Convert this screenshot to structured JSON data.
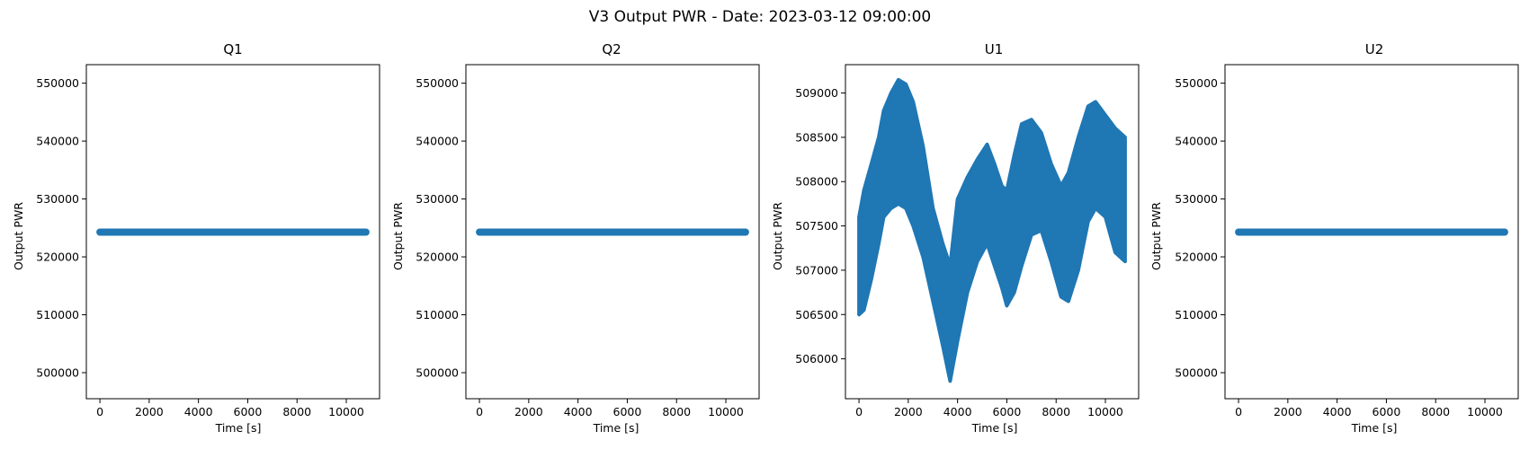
{
  "figure": {
    "suptitle": "V3 Output PWR - Date: 2023-03-12 09:00:00"
  },
  "colors": {
    "series": "#1f77b4",
    "axes": "#000000",
    "background": "#ffffff"
  },
  "chart_data": [
    {
      "type": "scatter",
      "title": "Q1",
      "xlabel": "Time [s]",
      "ylabel": "Output PWR",
      "marker": "star",
      "xlim": [
        -550,
        11350
      ],
      "ylim": [
        495500,
        553200
      ],
      "xticks": [
        0,
        2000,
        4000,
        6000,
        8000,
        10000
      ],
      "yticks": [
        500000,
        510000,
        520000,
        530000,
        540000,
        550000
      ],
      "grid": false,
      "series": [
        {
          "x": [
            0,
            1000,
            2000,
            3000,
            4000,
            5000,
            6000,
            7000,
            8000,
            9000,
            10000,
            10800
          ],
          "y": [
            524270,
            524270,
            524270,
            524270,
            524270,
            524270,
            524270,
            524270,
            524270,
            524270,
            524270,
            524270
          ]
        }
      ]
    },
    {
      "type": "scatter",
      "title": "Q2",
      "xlabel": "Time [s]",
      "ylabel": "Output PWR",
      "marker": "star",
      "xlim": [
        -550,
        11350
      ],
      "ylim": [
        495500,
        553200
      ],
      "xticks": [
        0,
        2000,
        4000,
        6000,
        8000,
        10000
      ],
      "yticks": [
        500000,
        510000,
        520000,
        530000,
        540000,
        550000
      ],
      "grid": false,
      "series": [
        {
          "x": [
            0,
            1000,
            2000,
            3000,
            4000,
            5000,
            6000,
            7000,
            8000,
            9000,
            10000,
            10800
          ],
          "y": [
            524270,
            524270,
            524270,
            524270,
            524270,
            524270,
            524270,
            524270,
            524270,
            524270,
            524270,
            524270
          ]
        }
      ]
    },
    {
      "type": "scatter",
      "title": "U1",
      "xlabel": "Time [s]",
      "ylabel": "Output PWR",
      "marker": "star",
      "xlim": [
        -550,
        11350
      ],
      "ylim": [
        505550,
        509320
      ],
      "xticks": [
        0,
        2000,
        4000,
        6000,
        8000,
        10000
      ],
      "yticks": [
        506000,
        506500,
        507000,
        507500,
        508000,
        508500,
        509000
      ],
      "grid": false,
      "series": [
        {
          "x": [
            0,
            200,
            500,
            800,
            1000,
            1300,
            1600,
            1900,
            2200,
            2600,
            3000,
            3400,
            3700,
            4000,
            4400,
            4800,
            5200,
            5500,
            5800,
            6000,
            6300,
            6600,
            7000,
            7400,
            7800,
            8200,
            8500,
            8900,
            9300,
            9600,
            10000,
            10400,
            10800
          ],
          "low": [
            506500,
            506550,
            506900,
            507300,
            507600,
            507700,
            507750,
            507700,
            507500,
            507150,
            506650,
            506150,
            505750,
            506200,
            506750,
            507100,
            507300,
            507050,
            506800,
            506600,
            506750,
            507050,
            507400,
            507450,
            507100,
            506700,
            506650,
            507000,
            507550,
            507700,
            507600,
            507200,
            507100
          ],
          "high": [
            507600,
            507900,
            508200,
            508500,
            508800,
            509000,
            509150,
            509100,
            508900,
            508400,
            507700,
            507300,
            507050,
            507800,
            508050,
            508250,
            508420,
            508200,
            507950,
            507900,
            508300,
            508650,
            508700,
            508550,
            508200,
            507950,
            508100,
            508500,
            508850,
            508900,
            508750,
            508600,
            508500
          ]
        }
      ]
    },
    {
      "type": "scatter",
      "title": "U2",
      "xlabel": "Time [s]",
      "ylabel": "Output PWR",
      "marker": "star",
      "xlim": [
        -550,
        11350
      ],
      "ylim": [
        495500,
        553200
      ],
      "xticks": [
        0,
        2000,
        4000,
        6000,
        8000,
        10000
      ],
      "yticks": [
        500000,
        510000,
        520000,
        530000,
        540000,
        550000
      ],
      "grid": false,
      "series": [
        {
          "x": [
            0,
            1000,
            2000,
            3000,
            4000,
            5000,
            6000,
            7000,
            8000,
            9000,
            10000,
            10800
          ],
          "y": [
            524270,
            524270,
            524270,
            524270,
            524270,
            524270,
            524270,
            524270,
            524270,
            524270,
            524270,
            524270
          ]
        }
      ]
    }
  ]
}
